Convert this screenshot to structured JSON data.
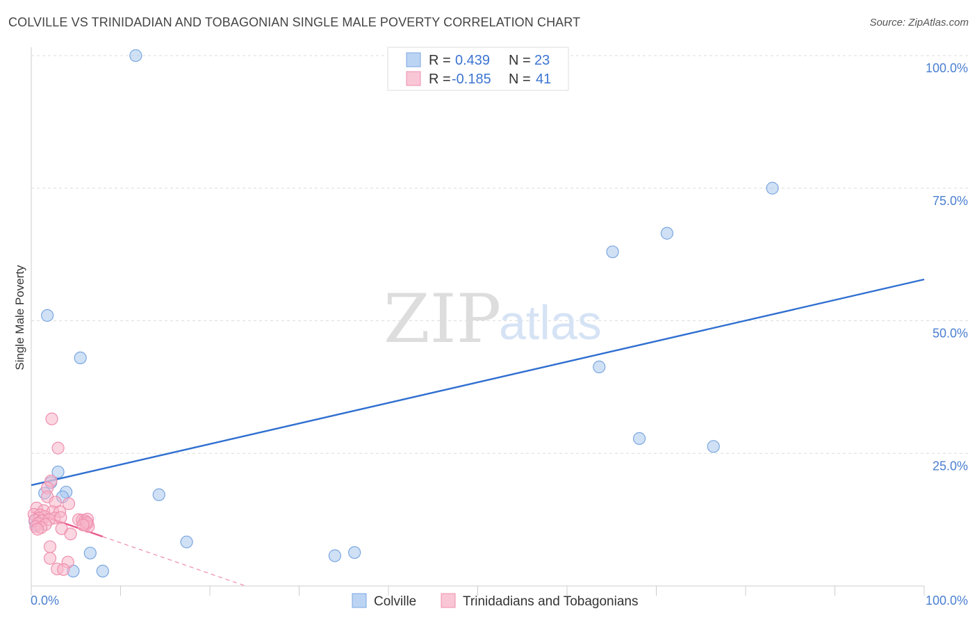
{
  "title": "COLVILLE VS TRINIDADIAN AND TOBAGONIAN SINGLE MALE POVERTY CORRELATION CHART",
  "source": "Source: ZipAtlas.com",
  "watermark": {
    "zip": "ZIP",
    "atlas": "atlas"
  },
  "chart_data": {
    "type": "scatter",
    "title": "COLVILLE VS TRINIDADIAN AND TOBAGONIAN SINGLE MALE POVERTY CORRELATION CHART",
    "xlabel": "",
    "ylabel": "Single Male Poverty",
    "xlim": [
      0,
      100
    ],
    "ylim": [
      0,
      100
    ],
    "x_tick_labels": [
      "0.0%",
      "100.0%"
    ],
    "y_ticks": [
      25,
      50,
      75,
      100
    ],
    "y_tick_labels": [
      "25.0%",
      "50.0%",
      "75.0%",
      "100.0%"
    ],
    "grid": true,
    "legend": {
      "position": "top-center",
      "entries": [
        {
          "r_label": "R =",
          "r_value": "0.439",
          "n_label": "N =",
          "n_value": "23"
        },
        {
          "r_label": "R =",
          "r_value": "-0.185",
          "n_label": "N =",
          "n_value": "41"
        }
      ]
    },
    "series": [
      {
        "name": "Colville",
        "color": "#a9c8ef",
        "stroke": "#7aa6e0",
        "trend_color": "#2f6fd0",
        "trend": {
          "x0": 0,
          "y0": 19.0,
          "x1": 100,
          "y1": 57.8
        },
        "points": [
          [
            11.7,
            100
          ],
          [
            1.8,
            51
          ],
          [
            5.5,
            43
          ],
          [
            3.0,
            21.5
          ],
          [
            2.2,
            19.5
          ],
          [
            1.5,
            17.5
          ],
          [
            3.9,
            17.7
          ],
          [
            3.5,
            16.8
          ],
          [
            14.3,
            17.2
          ],
          [
            0.6,
            11.5
          ],
          [
            17.4,
            8.3
          ],
          [
            6.6,
            6.2
          ],
          [
            4.7,
            2.8
          ],
          [
            8.0,
            2.8
          ],
          [
            34.0,
            5.7
          ],
          [
            36.2,
            6.3
          ],
          [
            83.0,
            75
          ],
          [
            71.2,
            66.5
          ],
          [
            65.1,
            63
          ],
          [
            63.6,
            41.3
          ],
          [
            68.1,
            27.8
          ],
          [
            76.4,
            26.3
          ],
          [
            0.4,
            12.2
          ]
        ]
      },
      {
        "name": "Trinidadians and Tobagonians",
        "color": "#f7b6cb",
        "stroke": "#ee8fae",
        "trend_color": "#e8588a",
        "trend": {
          "x0": 0,
          "y0": 14.0,
          "x1": 8.0,
          "y1": 9.3
        },
        "trend_ext": {
          "x0": 8.0,
          "y0": 9.3,
          "x1": 24.0,
          "y1": 0
        },
        "points": [
          [
            2.3,
            31.5
          ],
          [
            3.0,
            26
          ],
          [
            2.2,
            19.8
          ],
          [
            1.8,
            18.5
          ],
          [
            1.8,
            16.8
          ],
          [
            4.2,
            15.5
          ],
          [
            2.7,
            15.8
          ],
          [
            0.6,
            14.7
          ],
          [
            1.4,
            14.2
          ],
          [
            2.4,
            14.0
          ],
          [
            3.2,
            14.0
          ],
          [
            0.3,
            13.5
          ],
          [
            1.0,
            13.4
          ],
          [
            1.5,
            13.1
          ],
          [
            0.9,
            12.8
          ],
          [
            2.6,
            12.8
          ],
          [
            3.3,
            12.9
          ],
          [
            0.4,
            12.4
          ],
          [
            1.2,
            12.3
          ],
          [
            2.0,
            12.5
          ],
          [
            5.3,
            12.5
          ],
          [
            5.7,
            12.4
          ],
          [
            6.0,
            12.3
          ],
          [
            6.3,
            12.6
          ],
          [
            0.8,
            11.8
          ],
          [
            1.6,
            11.6
          ],
          [
            0.5,
            11.2
          ],
          [
            1.1,
            11.0
          ],
          [
            6.1,
            11.5
          ],
          [
            6.3,
            11.8
          ],
          [
            6.4,
            11.2
          ],
          [
            3.4,
            10.8
          ],
          [
            0.7,
            10.7
          ],
          [
            6.2,
            12.0
          ],
          [
            4.4,
            9.8
          ],
          [
            2.1,
            7.4
          ],
          [
            2.1,
            5.2
          ],
          [
            4.1,
            4.5
          ],
          [
            2.9,
            3.2
          ],
          [
            3.6,
            3.1
          ],
          [
            5.8,
            11.5
          ]
        ]
      }
    ]
  },
  "bottom_legend": [
    {
      "label": "Colville"
    },
    {
      "label": "Trinidadians and Tobagonians"
    }
  ]
}
